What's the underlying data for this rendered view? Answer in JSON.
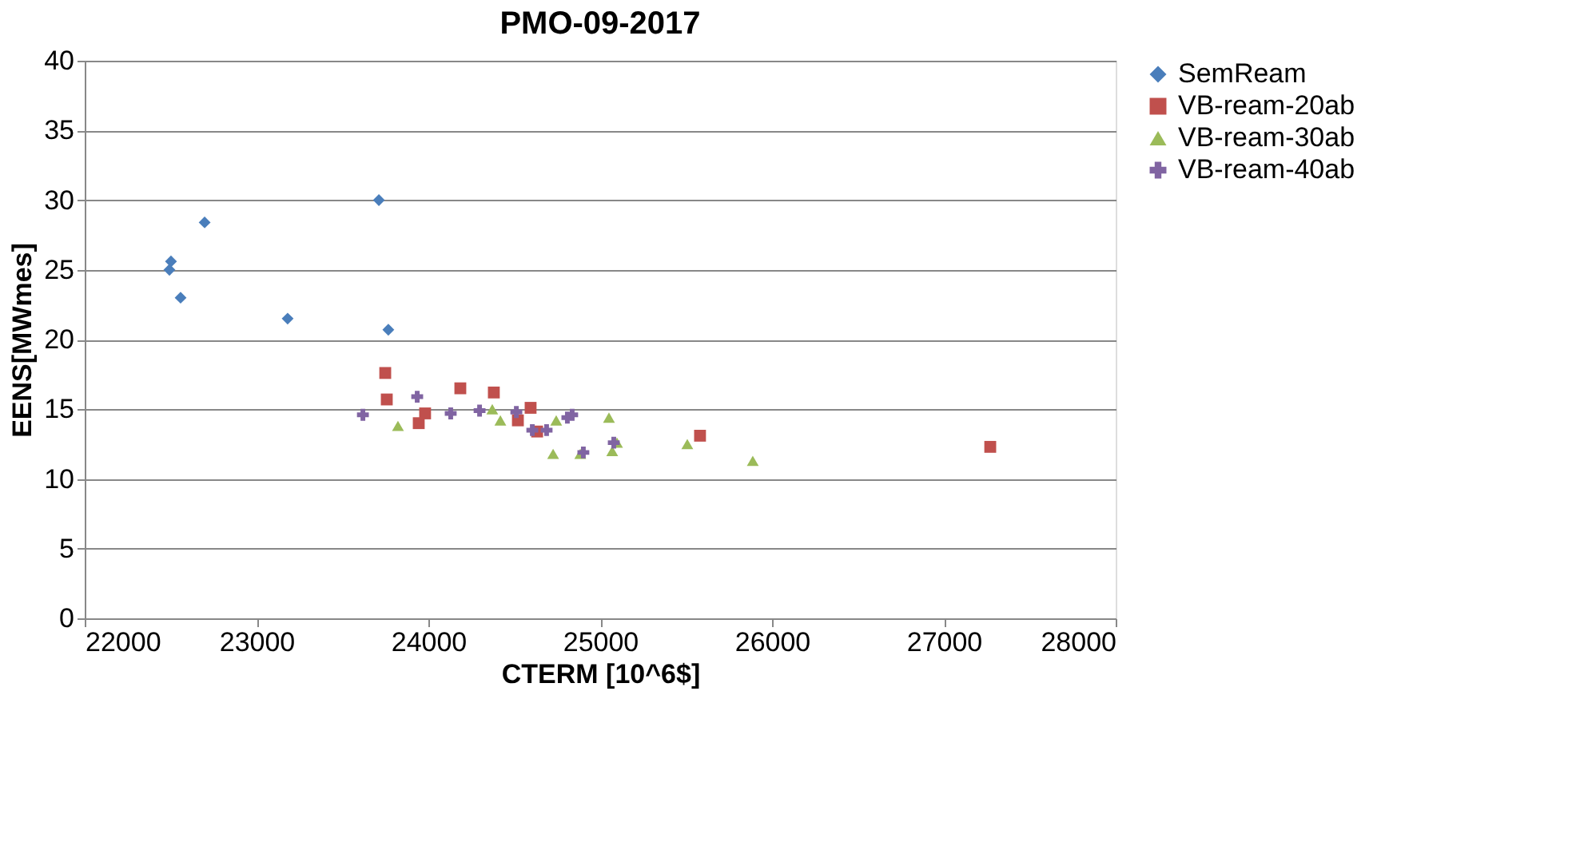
{
  "chart_data": {
    "type": "scatter",
    "title": "PMO-09-2017",
    "xlabel": "CTERM [10^6$]",
    "ylabel": "EENS[MWmes]",
    "xlim": [
      22000,
      28000
    ],
    "xticks": [
      22000,
      23000,
      24000,
      25000,
      26000,
      27000,
      28000
    ],
    "ylim": [
      0,
      40
    ],
    "yticks": [
      0,
      5,
      10,
      15,
      20,
      25,
      30,
      35,
      40
    ],
    "grid": "y",
    "legend": "right",
    "series": [
      {
        "name": "SemReam",
        "color": "#4a7ebb",
        "marker": "diamond",
        "x": [
          22502,
          22493,
          22558,
          22698,
          23181,
          23712,
          23767
        ],
        "values": [
          25.6,
          25.0,
          23.0,
          28.4,
          21.5,
          30.0,
          20.7
        ]
      },
      {
        "name": "VB-ream-20ab",
        "color": "#c0504d",
        "marker": "square",
        "x": [
          23749,
          23758,
          23944,
          23981,
          24186,
          24381,
          24521,
          24595,
          24633,
          25581,
          27270
        ],
        "values": [
          17.6,
          15.7,
          14.0,
          14.7,
          16.5,
          16.2,
          14.2,
          15.1,
          13.4,
          13.1,
          12.3
        ]
      },
      {
        "name": "VB-ream-30ab",
        "color": "#9bbb59",
        "marker": "triangle",
        "x": [
          23823,
          24372,
          24419,
          24744,
          24726,
          24884,
          25051,
          25070,
          25098,
          25507,
          25888
        ],
        "values": [
          13.8,
          15.0,
          14.2,
          14.2,
          11.8,
          11.8,
          14.4,
          12.0,
          12.6,
          12.5,
          11.3
        ]
      },
      {
        "name": "VB-ream-40ab",
        "color": "#8064a2",
        "marker": "cross",
        "x": [
          23619,
          23935,
          24130,
          24298,
          24512,
          24605,
          24688,
          24809,
          24837,
          24902,
          25079
        ],
        "values": [
          14.6,
          15.9,
          14.7,
          14.9,
          14.8,
          13.5,
          13.5,
          14.4,
          14.6,
          11.9,
          12.6
        ]
      }
    ]
  }
}
